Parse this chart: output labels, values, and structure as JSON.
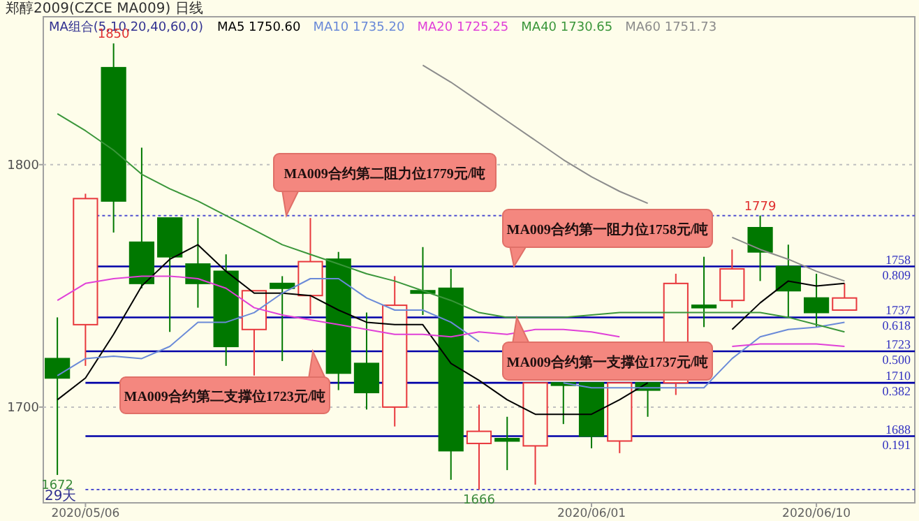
{
  "chart_data": {
    "type": "candlestick",
    "title": "郑醇2009(CZCE MA009)  日线",
    "legend_title": "MA组合(5,10,20,40,60,0)",
    "legend": "top",
    "grid": "y",
    "categories": [
      null,
      "2020/05/06",
      null,
      null,
      null,
      null,
      null,
      null,
      null,
      null,
      null,
      null,
      null,
      null,
      null,
      null,
      null,
      null,
      null,
      "2020/06/01",
      null,
      null,
      null,
      null,
      null,
      null,
      null,
      "2020/06/10",
      null
    ],
    "ohlc": [
      [
        1720,
        1737,
        1672,
        1712
      ],
      [
        1734,
        1788,
        1717,
        1786
      ],
      [
        1840,
        1850,
        1772,
        1785
      ],
      [
        1768,
        1807,
        1749,
        1751
      ],
      [
        1778,
        1778,
        1731,
        1762
      ],
      [
        1759,
        1778,
        1741,
        1751
      ],
      [
        1756,
        1763,
        1717,
        1725
      ],
      [
        1732,
        1748,
        1713,
        1748
      ],
      [
        1751,
        1754,
        1719,
        1749
      ],
      [
        1746,
        1778,
        1738,
        1760
      ],
      [
        1761,
        1764,
        1707,
        1714
      ],
      [
        1718,
        1739,
        1699,
        1706
      ],
      [
        1700,
        1754,
        1692,
        1742
      ],
      [
        1748,
        1766,
        1738,
        1747
      ],
      [
        1749,
        1757,
        1670,
        1682
      ],
      [
        1685,
        1701,
        1666,
        1690
      ],
      [
        1687,
        1696,
        1674,
        1686
      ],
      [
        1684,
        1710,
        1668,
        1710
      ],
      [
        1710,
        1710,
        1693,
        1709
      ],
      [
        1710,
        1710,
        1683,
        1688
      ],
      [
        1686,
        1710,
        1681,
        1710
      ],
      [
        1710,
        1710,
        1696,
        1707
      ],
      [
        1710,
        1755,
        1705,
        1751
      ],
      [
        1742,
        1762,
        1733,
        1741
      ],
      [
        1744,
        1765,
        1741,
        1757
      ],
      [
        1774,
        1779,
        1752,
        1764
      ],
      [
        1758,
        1767,
        1737,
        1748
      ],
      [
        1745,
        1755,
        1733,
        1739
      ],
      [
        1740,
        1751,
        1740,
        1745
      ]
    ],
    "colors": [
      "#007800",
      "#e8383d",
      "#007800",
      "#007800",
      "#007800",
      "#007800",
      "#007800",
      "#e8383d",
      "#007800",
      "#e8383d",
      "#007800",
      "#007800",
      "#e8383d",
      "#007800",
      "#007800",
      "#e8383d",
      "#007800",
      "#e8383d",
      "#007800",
      "#007800",
      "#e8383d",
      "#007800",
      "#e8383d",
      "#007800",
      "#e8383d",
      "#007800",
      "#007800",
      "#007800",
      "#e8383d"
    ],
    "series": [
      {
        "name": "MA5 1750.60",
        "type": "line",
        "color": "#000000",
        "values": [
          1703,
          1712,
          1730,
          1750,
          1761,
          1767,
          1756,
          1747,
          1747,
          1746,
          1740,
          1735,
          1734,
          1734,
          1718,
          1711,
          1703,
          1697,
          1697,
          1697,
          1703,
          1710,
          null,
          null,
          1732,
          1743,
          1752,
          1750,
          1751
        ]
      },
      {
        "name": "MA10 1735.20",
        "type": "line",
        "color": "#6a8ad8",
        "values": [
          1713,
          1720,
          1721,
          1720,
          1725,
          1735,
          1735,
          1739,
          1747,
          1753,
          1753,
          1745,
          1740,
          1740,
          1735,
          1727,
          null,
          null,
          1710,
          1708,
          1708,
          1708,
          1708,
          1708,
          1720,
          1729,
          1732,
          1733,
          1735
        ]
      },
      {
        "name": "MA20 1725.25",
        "type": "line",
        "color": "#e040d8",
        "values": [
          1744,
          1751,
          1753,
          1754,
          1754,
          1753,
          1749,
          1741,
          1738,
          1736,
          1734,
          1732,
          1730,
          1730,
          1729,
          1731,
          1730,
          1732,
          1732,
          1731,
          1729,
          null,
          null,
          null,
          1725,
          1726,
          1726,
          1726,
          1725
        ]
      },
      {
        "name": "MA40 1730.65",
        "type": "line",
        "color": "#3a963a",
        "values": [
          1821,
          1814,
          1806,
          1796,
          1790,
          1785,
          1779,
          1773,
          1767,
          1763,
          1759,
          1755,
          1752,
          1748,
          1744,
          1739,
          1737,
          1737,
          1737,
          1738,
          1739,
          1739,
          1739,
          1739,
          1739,
          1739,
          1737,
          1734,
          1731
        ]
      },
      {
        "name": "MA60 1751.73",
        "type": "line",
        "color": "#8c8c8c",
        "values": [
          null,
          null,
          null,
          null,
          null,
          null,
          null,
          null,
          null,
          null,
          null,
          null,
          null,
          1841,
          1834,
          1826,
          1818,
          1810,
          1802,
          1795,
          1789,
          1784,
          null,
          null,
          1770,
          1765,
          1761,
          1756,
          1752
        ]
      }
    ],
    "ylim": [
      1660.5,
      1861
    ],
    "yticks": [
      1700,
      1800
    ],
    "ref_lines": [
      {
        "axis": "y",
        "value": 1758,
        "label": "1758",
        "color": "#0000a8",
        "line_style": "solid"
      },
      {
        "axis": "y",
        "value": 1737,
        "label": "1737",
        "color": "#0000a8",
        "line_style": "solid"
      },
      {
        "axis": "y",
        "value": 1723,
        "label": "1723",
        "color": "#0000a8",
        "line_style": "solid"
      },
      {
        "axis": "y",
        "value": 1710,
        "label": "1710",
        "color": "#0000a8",
        "line_style": "solid"
      },
      {
        "axis": "y",
        "value": 1688,
        "label": "1688",
        "color": "#0000a8",
        "line_style": "solid"
      },
      {
        "axis": "y",
        "value": 1779,
        "color": "#5050d0",
        "line_style": "dotted"
      },
      {
        "axis": "y",
        "value": 1666,
        "color": "#5050d0",
        "line_style": "dotted"
      }
    ],
    "annotations": [
      {
        "text": "MA009合约第二阻力位1779元/吨",
        "y": 1779
      },
      {
        "text": "MA009合约第一阻力位1758元/吨",
        "y": 1758
      },
      {
        "text": "MA009合约第一支撑位1737元/吨",
        "y": 1737
      },
      {
        "text": "MA009合约第二支撑位1723元/吨",
        "y": 1723
      },
      {
        "text": "0.809",
        "y": 1758
      },
      {
        "text": "0.618",
        "y": 1737
      },
      {
        "text": "0.500",
        "y": 1723
      },
      {
        "text": "0.382",
        "y": 1710
      },
      {
        "text": "0.191",
        "y": 1688
      },
      {
        "text": "1850",
        "y": 1850
      },
      {
        "text": "1779",
        "y": 1779
      },
      {
        "text": "1672",
        "y": 1672
      },
      {
        "text": "1666",
        "y": 1666
      },
      "29天"
    ]
  }
}
